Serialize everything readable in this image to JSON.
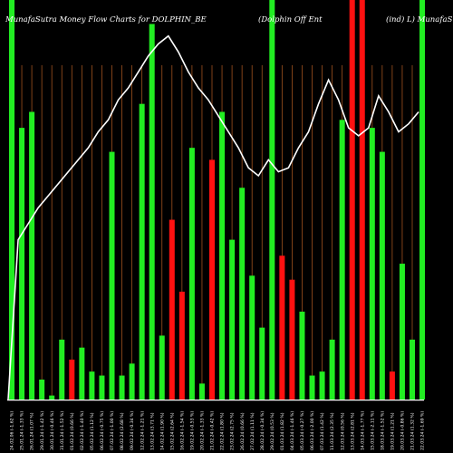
{
  "chart_data": {
    "type": "bar",
    "title_left": "MunafaSutra  Money Flow  Charts for DOLPHIN_BE",
    "title_mid": "(Dolphin  Off  Ent",
    "title_right": "(ind) L) MunafaSutra",
    "xlabel": "",
    "ylabel": "",
    "grid": "vertical",
    "ylim": [
      0,
      100
    ],
    "colors": {
      "up": "#22ee22",
      "down": "#ff1111",
      "grid": "#a0521e",
      "line": "#ffffff",
      "background": "#000000"
    },
    "categories": [
      "24.02.06 (-1.62 %)",
      "25.01.24 (-1.33 %)",
      "26.01.24 (1.07 %)",
      "29.01.24 (-1.42 %)",
      "30.01.24 (-0.46 %)",
      "31.01.24 (-1.52 %)",
      "01.02.24 (0.66 %)",
      "02.02.24 (-1.40 %)",
      "05.02.24 (1.12 %)",
      "06.02.24 (-0.75 %)",
      "07.02.24 (-1.00 %)",
      "08.02.24 (2.68 %)",
      "09.02.24 (-0.34 %)",
      "12.02.24 (-1.21 %)",
      "13.02.24 (3.71 %)",
      "14.02.24 (1.90 %)",
      "15.02.24 (2.64 %)",
      "16.02.24 (-1.54 %)",
      "19.02.24 (-0.53 %)",
      "20.02.24 (-1.33 %)",
      "21.02.24 (-0.42 %)",
      "22.02.24 (1.80 %)",
      "23.02.24 (2.75 %)",
      "26.02.24 (0.66 %)",
      "27.02.24 (1.11 %)",
      "28.02.24 (-0.34 %)",
      "29.02.24 (0.53 %)",
      "01.03.24 (1.82 %)",
      "04.03.24 (-1.46 %)",
      "05.03.24 (-0.27 %)",
      "06.03.24 (-2.00 %)",
      "07.03.24 (1.42 %)",
      "11.03.24 (2.35 %)",
      "12.03.24 (0.56 %)",
      "13.03.24 (2.81 %)",
      "14.03.24 (-1.77 %)",
      "15.03.24 (-2.11 %)",
      "18.03.24 (-1.52 %)",
      "19.03.24 (1.21 %)",
      "20.03.24 (-0.86 %)",
      "21.03.24 (1.32 %)",
      "22.03.24 (-1.69 %)"
    ],
    "values": [
      100,
      68,
      72,
      5,
      1,
      15,
      10,
      13,
      7,
      6,
      62,
      6,
      9,
      74,
      94,
      16,
      45,
      27,
      63,
      4,
      60,
      72,
      40,
      53,
      31,
      18,
      100,
      36,
      30,
      22,
      6,
      7,
      15,
      70,
      100,
      100,
      68,
      62,
      7,
      34,
      15,
      100
    ],
    "bar_colors": [
      "up",
      "up",
      "up",
      "up",
      "up",
      "up",
      "down",
      "up",
      "up",
      "up",
      "up",
      "up",
      "up",
      "up",
      "up",
      "up",
      "down",
      "down",
      "up",
      "up",
      "down",
      "up",
      "up",
      "up",
      "up",
      "up",
      "up",
      "down",
      "down",
      "up",
      "up",
      "up",
      "up",
      "up",
      "down",
      "down",
      "up",
      "up",
      "down",
      "up",
      "up",
      "up"
    ],
    "line": [
      32,
      40,
      44,
      48,
      51,
      54,
      57,
      60,
      63,
      67,
      70,
      75,
      78,
      82,
      86,
      89,
      91,
      87,
      82,
      78,
      75,
      71,
      67,
      63,
      58,
      56,
      60,
      57,
      58,
      63,
      67,
      74,
      80,
      75,
      68,
      66,
      68,
      76,
      72,
      67,
      69,
      72
    ]
  }
}
